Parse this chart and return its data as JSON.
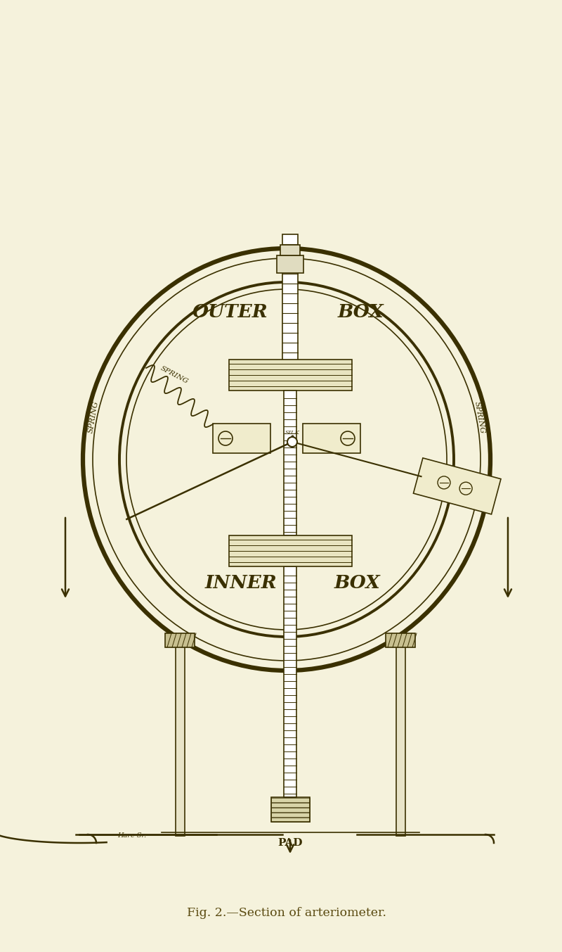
{
  "background_color": "#F5F2DC",
  "line_color": "#3a3000",
  "fig_width": 8.0,
  "fig_height": 13.53,
  "caption": "Fig. 2.—Section of arteriometer.",
  "caption_color": "#5a4a10",
  "label_outer_box_left": "OUTER",
  "label_outer_box_right": "BOX",
  "label_inner_box_left": "INNER",
  "label_inner_box_right": "BOX",
  "label_spring_left": "SPRING",
  "label_spring_right": "SPRING",
  "label_spring_inner": "SPRING",
  "label_pad": "PAD",
  "label_silk": "SILK",
  "label_hare": "Hare Sr."
}
